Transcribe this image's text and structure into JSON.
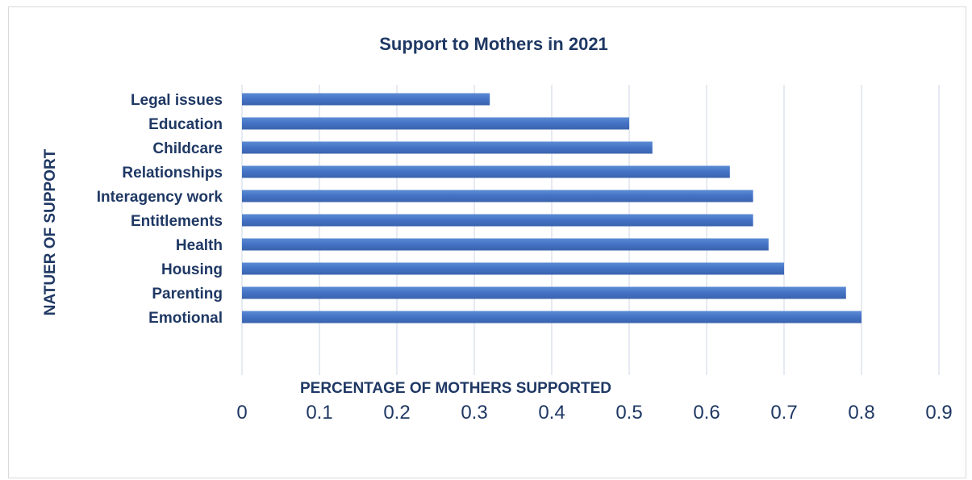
{
  "chart_data": {
    "type": "bar",
    "orientation": "horizontal",
    "title": "Support to Mothers in 2021",
    "xlabel": "PERCENTAGE OF MOTHERS SUPPORTED",
    "ylabel": "NATUER OF SUPPORT",
    "categories": [
      "Emotional",
      "Parenting",
      "Housing",
      "Health",
      "Entitlements",
      "Interagency work",
      "Relationships",
      "Childcare",
      "Education",
      "Legal issues"
    ],
    "values": [
      0.8,
      0.78,
      0.7,
      0.68,
      0.66,
      0.66,
      0.63,
      0.53,
      0.5,
      0.32
    ],
    "xlim": [
      0,
      0.9
    ],
    "xticks": [
      "0",
      "0.1",
      "0.2",
      "0.3",
      "0.4",
      "0.5",
      "0.6",
      "0.7",
      "0.8",
      "0.9"
    ],
    "grid": true,
    "legend": "none",
    "bar_color": "#4472c4"
  }
}
